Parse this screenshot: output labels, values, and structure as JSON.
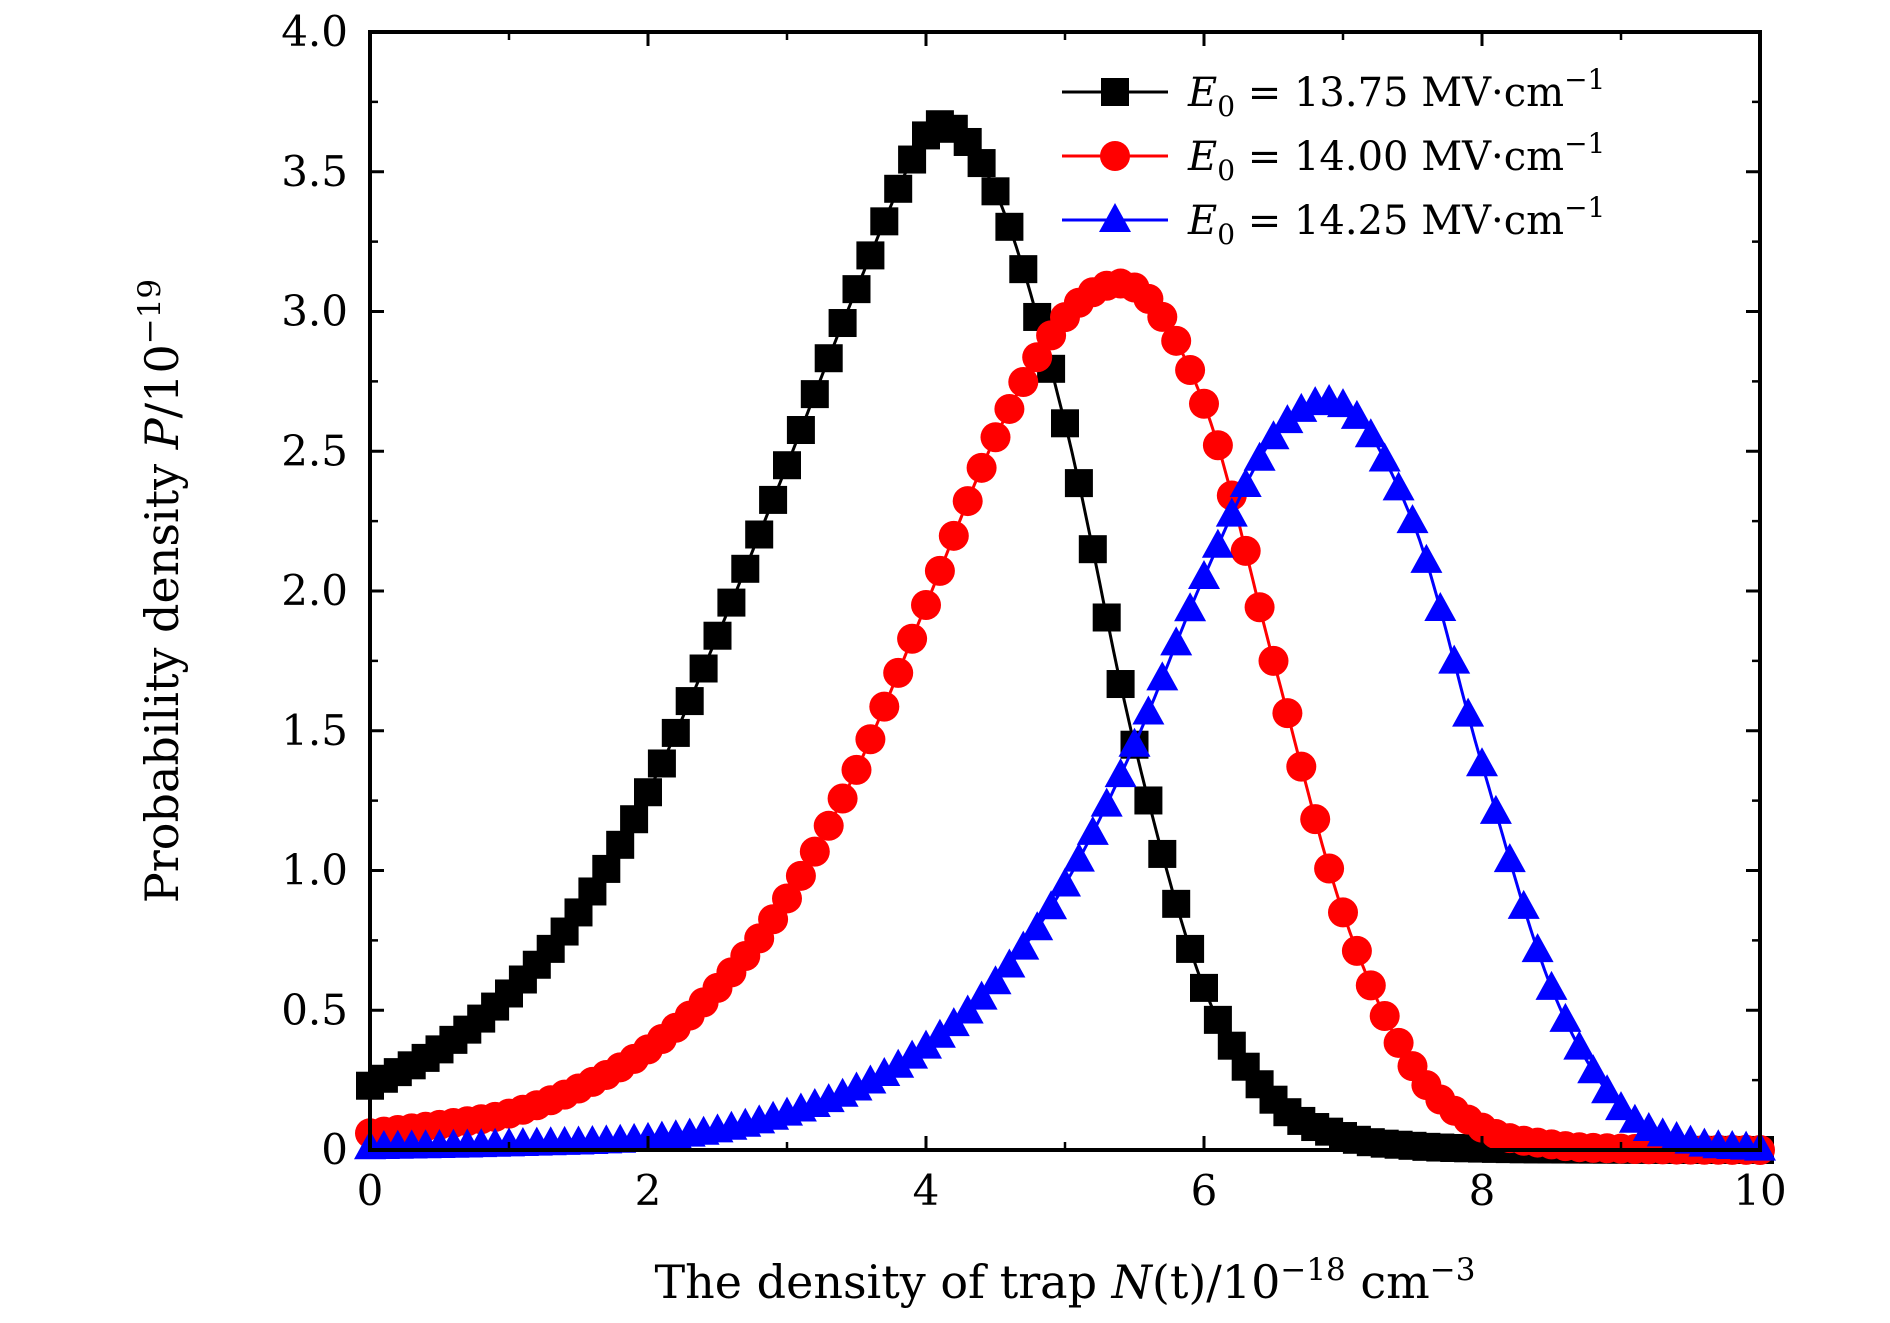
{
  "chart_data": {
    "type": "line",
    "title": "",
    "xlabel": {
      "prefix": "The density of trap ",
      "var": "N",
      "paren": "(t)/10",
      "exp": "−18",
      "unit": " cm",
      "unit_exp": "−3"
    },
    "ylabel": {
      "prefix": "Probability density ",
      "var": "P",
      "mid": "/10",
      "exp": "−19"
    },
    "xlim": [
      0,
      10
    ],
    "ylim": [
      0,
      4.0
    ],
    "xticks": [
      0,
      2,
      4,
      6,
      8,
      10
    ],
    "xtick_labels": [
      "0",
      "2",
      "4",
      "6",
      "8",
      "10"
    ],
    "yticks": [
      0,
      0.5,
      1.0,
      1.5,
      2.0,
      2.5,
      3.0,
      3.5,
      4.0
    ],
    "ytick_labels": [
      "0",
      "0.5",
      "1.0",
      "1.5",
      "2.0",
      "2.5",
      "3.0",
      "3.5",
      "4.0"
    ],
    "grid": false,
    "legend_position": "top-right",
    "series": [
      {
        "name": "E0 = 13.75 MV·cm−1",
        "legend": {
          "var": "E",
          "sub": "0",
          "value": " = 13.75 MV·cm",
          "sup": "−1"
        },
        "color": "#000000",
        "marker": "square",
        "peak_x": 4.1,
        "peak_y": 3.67,
        "x": [
          0.0,
          0.5,
          1.0,
          1.5,
          2.0,
          2.5,
          3.0,
          3.5,
          4.0,
          4.1,
          4.5,
          5.0,
          5.5,
          6.0,
          6.5,
          7.0,
          7.5,
          8.0,
          9.0,
          10.0
        ],
        "values": [
          0.23,
          0.36,
          0.56,
          0.85,
          1.28,
          1.84,
          2.45,
          3.08,
          3.63,
          3.67,
          3.43,
          2.6,
          1.45,
          0.58,
          0.18,
          0.05,
          0.015,
          0.005,
          0.001,
          0.0
        ]
      },
      {
        "name": "E0 = 14.00 MV·cm−1",
        "legend": {
          "var": "E",
          "sub": "0",
          "value": " = 14.00 MV·cm",
          "sup": "−1"
        },
        "color": "#ff0000",
        "marker": "circle",
        "peak_x": 5.4,
        "peak_y": 3.1,
        "x": [
          0.0,
          0.5,
          1.0,
          1.5,
          2.0,
          2.5,
          3.0,
          3.5,
          4.0,
          4.5,
          5.0,
          5.4,
          6.0,
          6.5,
          7.0,
          7.5,
          8.0,
          8.5,
          9.0,
          10.0
        ],
        "values": [
          0.06,
          0.09,
          0.13,
          0.22,
          0.36,
          0.58,
          0.9,
          1.36,
          1.95,
          2.55,
          2.98,
          3.1,
          2.67,
          1.75,
          0.85,
          0.3,
          0.08,
          0.02,
          0.005,
          0.0
        ]
      },
      {
        "name": "E0 = 14.25 MV·cm−1",
        "legend": {
          "var": "E",
          "sub": "0",
          "value": " = 14.25 MV·cm",
          "sup": "−1"
        },
        "color": "#0000ff",
        "marker": "triangle",
        "peak_x": 6.9,
        "peak_y": 2.68,
        "x": [
          0.0,
          1.0,
          2.0,
          2.5,
          3.0,
          3.5,
          4.0,
          4.5,
          5.0,
          5.5,
          6.0,
          6.5,
          6.9,
          7.5,
          8.0,
          8.5,
          9.0,
          9.5,
          10.0
        ],
        "values": [
          0.01,
          0.02,
          0.04,
          0.07,
          0.13,
          0.22,
          0.37,
          0.6,
          0.95,
          1.45,
          2.05,
          2.55,
          2.68,
          2.25,
          1.38,
          0.58,
          0.15,
          0.03,
          0.005
        ]
      }
    ]
  }
}
